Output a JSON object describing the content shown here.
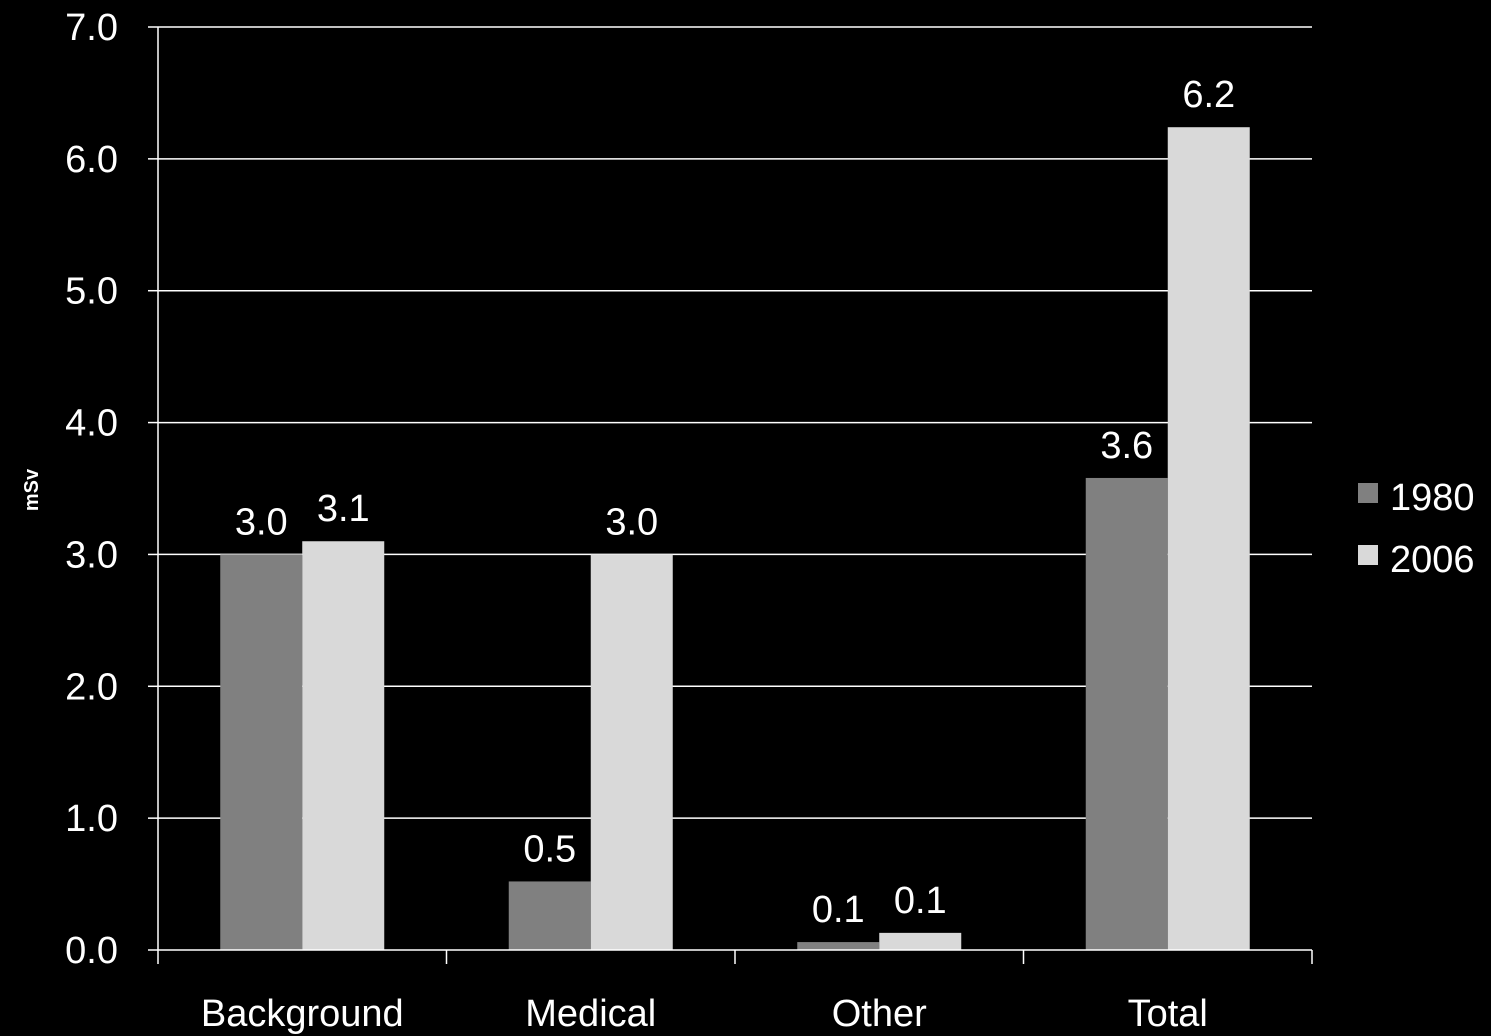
{
  "chart_data": {
    "type": "bar",
    "categories": [
      "Background",
      "Medical",
      "Other",
      "Total"
    ],
    "series": [
      {
        "name": "1980",
        "color": "#808080",
        "values": [
          3.0,
          0.52,
          0.06,
          3.58
        ],
        "labels": [
          "3.0",
          "0.5",
          "0.1",
          "3.6"
        ]
      },
      {
        "name": "2006",
        "color": "#d9d9d9",
        "values": [
          3.1,
          3.0,
          0.13,
          6.24
        ],
        "labels": [
          "3.1",
          "3.0",
          "0.1",
          "6.2"
        ]
      }
    ],
    "ylabel": "mSv",
    "ylim": [
      0,
      7
    ],
    "yticks": [
      "0.0",
      "1.0",
      "2.0",
      "3.0",
      "4.0",
      "5.0",
      "6.0",
      "7.0"
    ],
    "grid": true,
    "legend_position": "right"
  }
}
